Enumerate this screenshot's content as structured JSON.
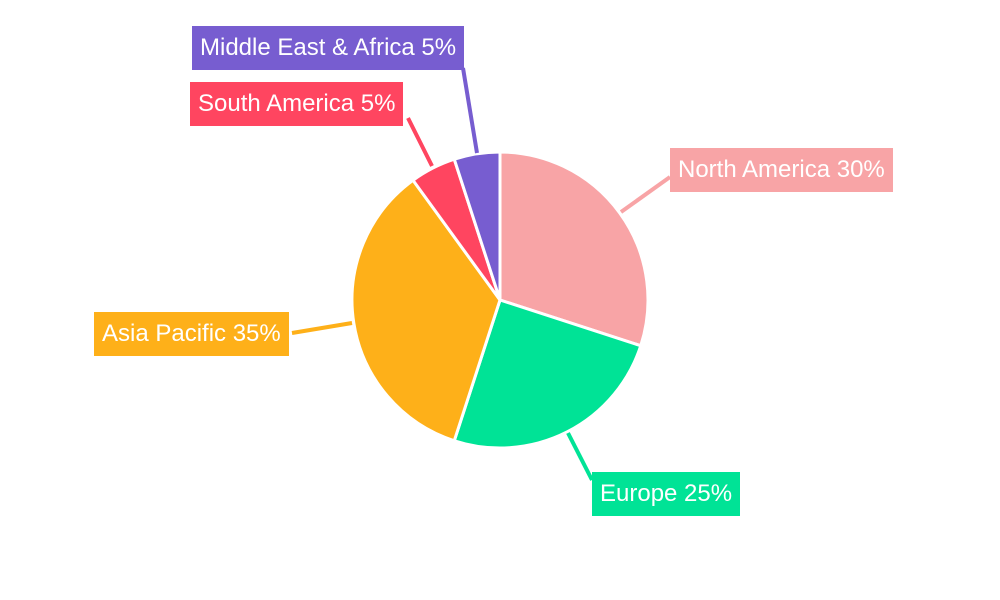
{
  "chart_data": {
    "type": "pie",
    "slices": [
      {
        "label": "North America",
        "value": 30,
        "display": "North America 30%",
        "color": "#f8a4a6"
      },
      {
        "label": "Europe",
        "value": 25,
        "display": "Europe 25%",
        "color": "#00e396"
      },
      {
        "label": "Asia Pacific",
        "value": 35,
        "display": "Asia Pacific 35%",
        "color": "#feb019"
      },
      {
        "label": "South America",
        "value": 5,
        "display": "South America 5%",
        "color": "#ff4560"
      },
      {
        "label": "Middle East & Africa",
        "value": 5,
        "display": "Middle East & Africa 5%",
        "color": "#775dd0"
      }
    ],
    "start_angle": "top",
    "direction": "clockwise",
    "legend": "none"
  }
}
